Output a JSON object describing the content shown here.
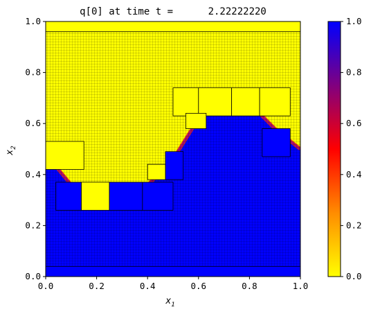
{
  "chart_data": {
    "type": "heatmap",
    "title": "q[0] at time t =      2.22222220",
    "xlabel": "x",
    "xlabel_sub": "1",
    "ylabel": "x",
    "ylabel_sub": "2",
    "xlim": [
      0.0,
      1.0
    ],
    "ylim": [
      0.0,
      1.0
    ],
    "xticks": [
      "0.0",
      "0.2",
      "0.4",
      "0.6",
      "0.8",
      "1.0"
    ],
    "yticks": [
      "0.0",
      "0.2",
      "0.4",
      "0.6",
      "0.8",
      "1.0"
    ],
    "colorbar": {
      "range": [
        0.0,
        1.0
      ],
      "ticks": [
        "0.0",
        "0.2",
        "0.4",
        "0.6",
        "0.8",
        "1.0"
      ],
      "colors": [
        "#ffff00",
        "#ff8c00",
        "#ff0000",
        "#800080",
        "#0000ff"
      ]
    },
    "field": {
      "low_value": 1.0,
      "high_value": 0.0,
      "interface_curve": [
        [
          0.0,
          0.49
        ],
        [
          0.05,
          0.42
        ],
        [
          0.1,
          0.36
        ],
        [
          0.15,
          0.325
        ],
        [
          0.2,
          0.31
        ],
        [
          0.25,
          0.305
        ],
        [
          0.3,
          0.31
        ],
        [
          0.35,
          0.33
        ],
        [
          0.4,
          0.36
        ],
        [
          0.45,
          0.405
        ],
        [
          0.5,
          0.46
        ],
        [
          0.55,
          0.54
        ],
        [
          0.6,
          0.62
        ],
        [
          0.65,
          0.67
        ],
        [
          0.7,
          0.69
        ],
        [
          0.75,
          0.69
        ],
        [
          0.8,
          0.67
        ],
        [
          0.85,
          0.63
        ],
        [
          0.9,
          0.58
        ],
        [
          0.95,
          0.54
        ],
        [
          1.0,
          0.5
        ]
      ]
    },
    "amr_patches": [
      {
        "level": "coarse",
        "box": [
          0.0,
          0.0,
          1.0,
          0.04
        ]
      },
      {
        "level": "coarse",
        "box": [
          0.0,
          0.96,
          1.0,
          1.0
        ]
      },
      {
        "level": "coarse",
        "box": [
          0.04,
          0.26,
          0.14,
          0.37
        ]
      },
      {
        "level": "coarse",
        "box": [
          0.14,
          0.26,
          0.25,
          0.37
        ]
      },
      {
        "level": "coarse",
        "box": [
          0.25,
          0.26,
          0.38,
          0.37
        ]
      },
      {
        "level": "coarse",
        "box": [
          0.38,
          0.26,
          0.5,
          0.37
        ]
      },
      {
        "level": "coarse",
        "box": [
          0.5,
          0.63,
          0.6,
          0.74
        ]
      },
      {
        "level": "coarse",
        "box": [
          0.6,
          0.63,
          0.73,
          0.74
        ]
      },
      {
        "level": "coarse",
        "box": [
          0.73,
          0.63,
          0.84,
          0.74
        ]
      },
      {
        "level": "coarse",
        "box": [
          0.84,
          0.63,
          0.96,
          0.74
        ]
      },
      {
        "level": "coarse",
        "box": [
          0.0,
          0.42,
          0.15,
          0.53
        ]
      },
      {
        "level": "coarse",
        "box": [
          0.85,
          0.47,
          0.96,
          0.58
        ]
      },
      {
        "level": "coarse",
        "box": [
          0.47,
          0.38,
          0.54,
          0.49
        ]
      },
      {
        "level": "coarse",
        "box": [
          0.4,
          0.38,
          0.47,
          0.44
        ]
      },
      {
        "level": "coarse",
        "box": [
          0.55,
          0.58,
          0.63,
          0.64
        ]
      }
    ]
  }
}
